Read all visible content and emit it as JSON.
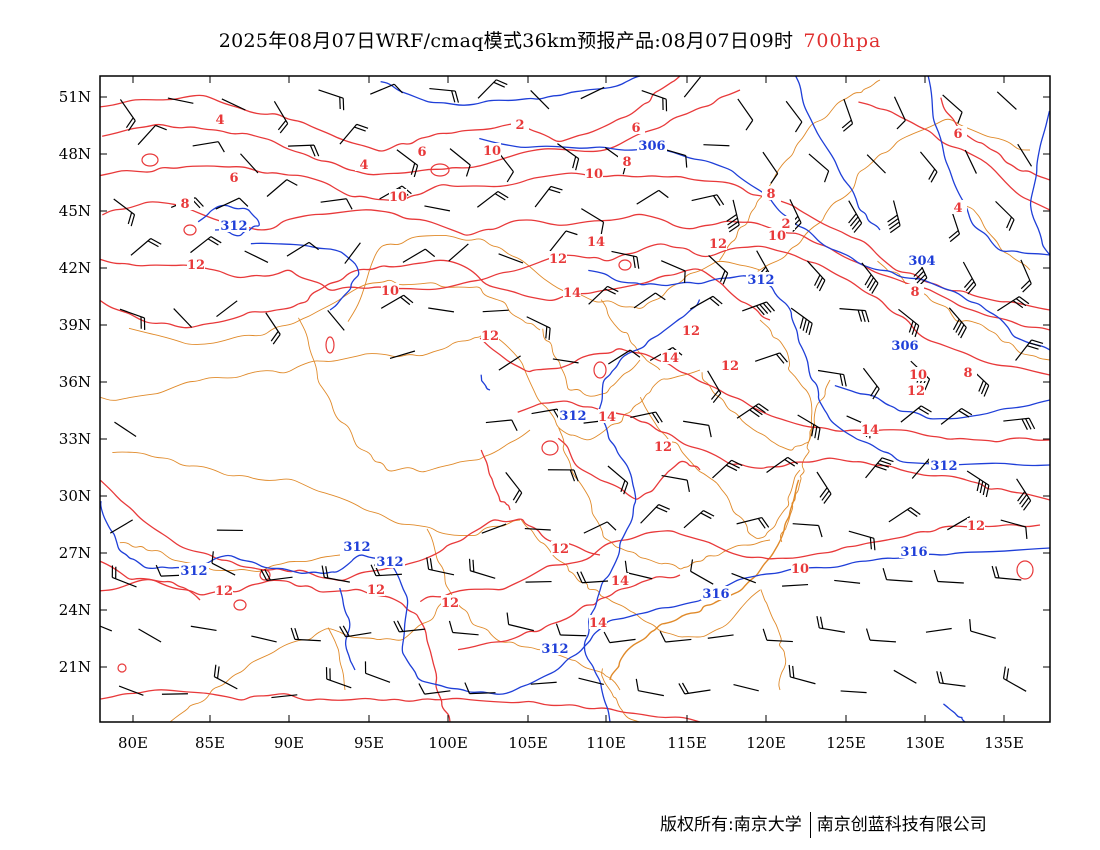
{
  "title": {
    "main": "2025年08月07日WRF/cmaq模式36km预报产品:08月07日09时",
    "level": "700hpa"
  },
  "colors": {
    "temperature_contour": "#e8393a",
    "height_contour": "#1f3fd8",
    "boundary": "#e08a2a",
    "wind_barb": "#000000"
  },
  "axes": {
    "lon_labels": [
      "80E",
      "85E",
      "90E",
      "95E",
      "100E",
      "105E",
      "110E",
      "115E",
      "120E",
      "125E",
      "130E",
      "135E"
    ],
    "lat_labels": [
      "51N",
      "48N",
      "45N",
      "42N",
      "39N",
      "36N",
      "33N",
      "30N",
      "27N",
      "24N",
      "21N"
    ]
  },
  "contour_labels": {
    "height": [
      "306",
      "312",
      "312",
      "312",
      "304",
      "306",
      "312",
      "312",
      "312",
      "312",
      "316",
      "316",
      "312"
    ],
    "temperature": [
      "4",
      "2",
      "6",
      "6",
      "4",
      "8",
      "6",
      "8",
      "10",
      "10",
      "8",
      "10",
      "12",
      "14",
      "14",
      "12",
      "10",
      "12",
      "12",
      "14",
      "12",
      "14",
      "12",
      "14",
      "12",
      "10",
      "8",
      "12",
      "10",
      "14",
      "12",
      "12",
      "12",
      "12",
      "14",
      "12",
      "10",
      "8",
      "6",
      "4",
      "2"
    ]
  },
  "footer": {
    "copyright": "版权所有:南京大学",
    "company": "南京创蓝科技有限公司"
  }
}
